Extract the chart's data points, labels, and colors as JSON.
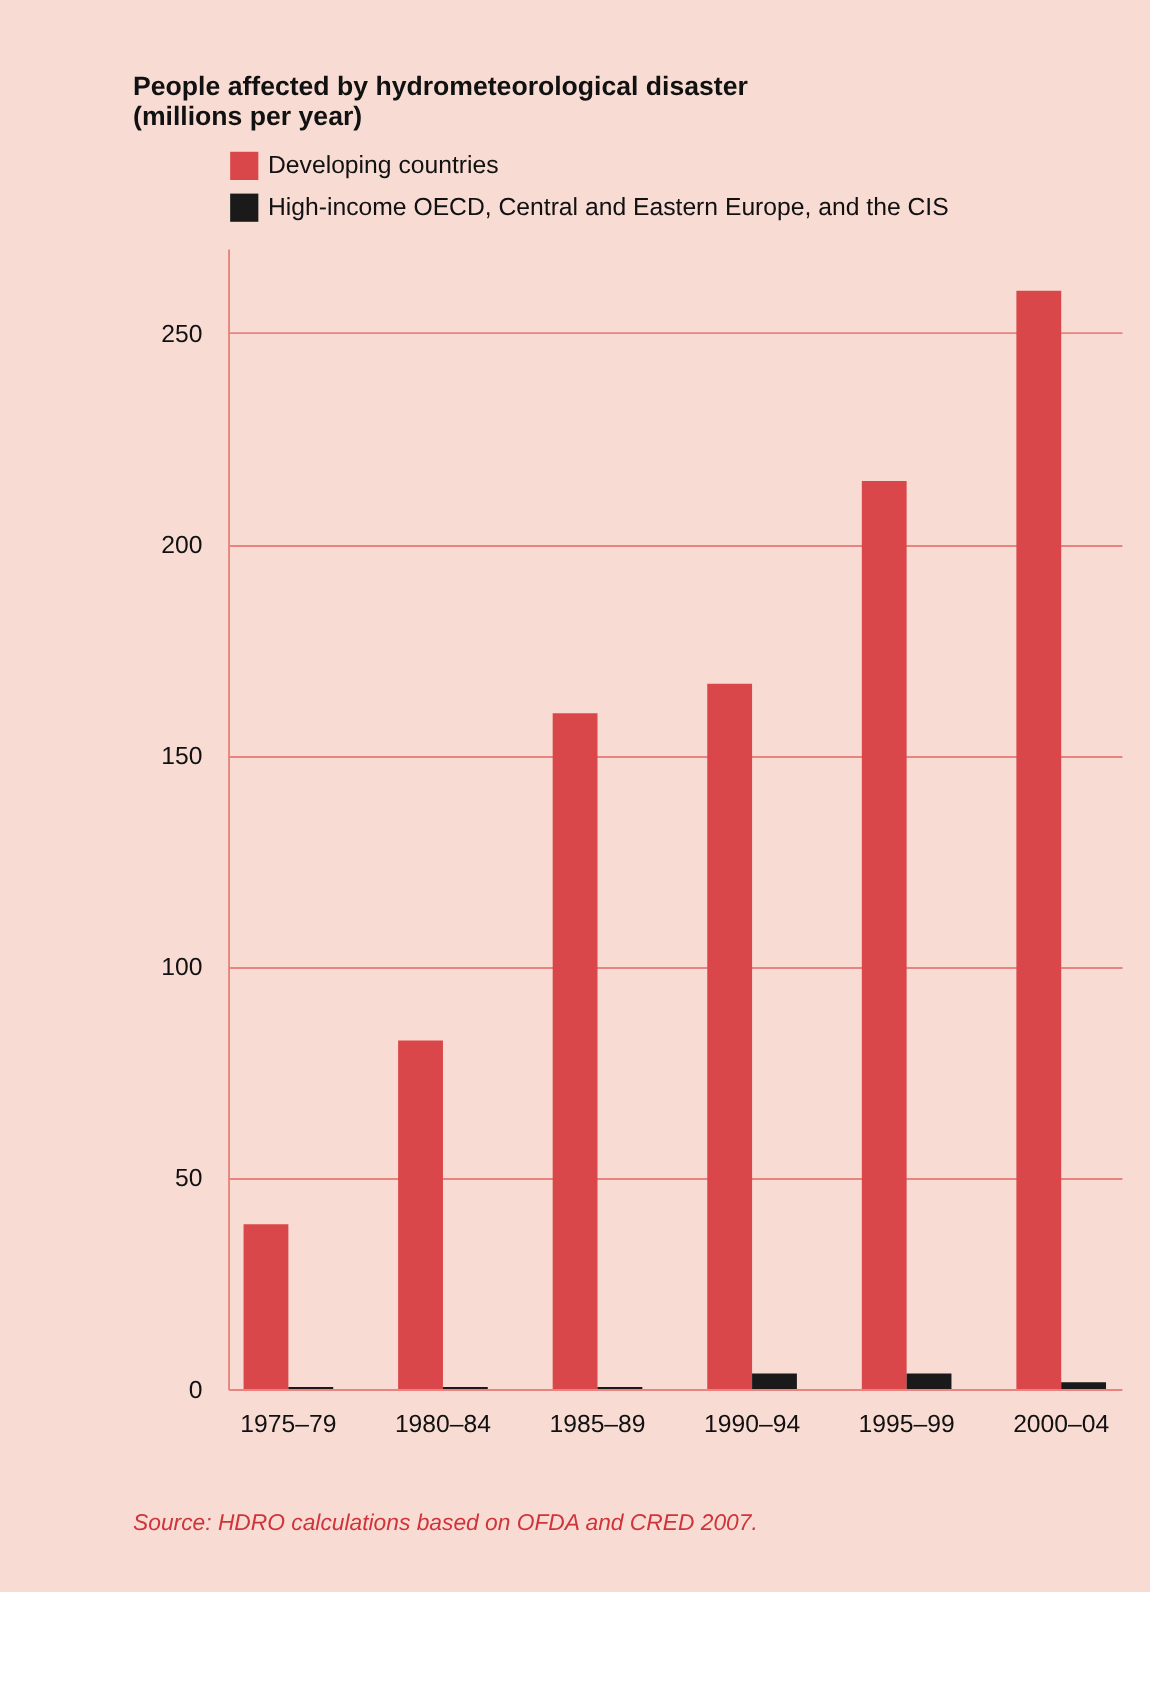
{
  "chart_data": {
    "type": "bar",
    "title": "People affected by hydrometeorological disaster",
    "ylabel": "(millions per year)",
    "categories": [
      "1975–79",
      "1980–84",
      "1985–89",
      "1990–94",
      "1995–99",
      "2000–04"
    ],
    "series": [
      {
        "name": "Developing countries",
        "color": "#d9474a",
        "values": [
          39,
          82.5,
          160,
          167,
          215,
          260
        ]
      },
      {
        "name": "High-income OECD, Central and Eastern Europe, and the CIS",
        "color": "#1a1a1a",
        "values": [
          0.5,
          0.5,
          0.5,
          3.7,
          3.7,
          1.6
        ]
      }
    ],
    "ylim": [
      0,
      270
    ],
    "yticks": [
      0,
      50,
      100,
      150,
      200,
      250
    ],
    "grid": "y",
    "legend": "top left",
    "annotations": [
      "Source: HDRO calculations based on OFDA and CRED 2007."
    ]
  }
}
